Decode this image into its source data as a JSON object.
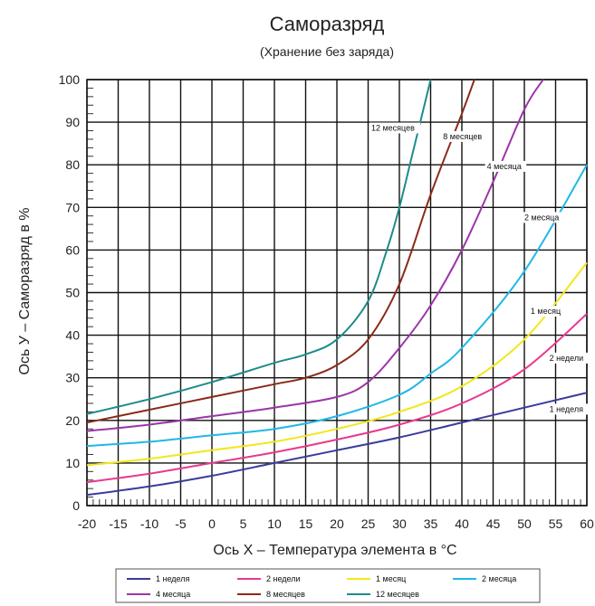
{
  "chart_data": {
    "type": "line",
    "title": "Саморазряд",
    "subtitle": "(Хранение без заряда)",
    "xlabel": "Ось X – Температура элемента в °C",
    "ylabel": "Ось У – Саморазряд в %",
    "xlim": [
      -20,
      60
    ],
    "ylim": [
      0,
      100
    ],
    "xticks": [
      -20,
      -15,
      -10,
      -5,
      0,
      5,
      10,
      15,
      20,
      25,
      30,
      35,
      40,
      45,
      50,
      55,
      60
    ],
    "yticks": [
      0,
      10,
      20,
      30,
      40,
      50,
      60,
      70,
      80,
      90,
      100
    ],
    "grid": true,
    "legend_position": "bottom",
    "series": [
      {
        "name": "1 неделя",
        "color": "#3b3b9c",
        "label": "1 неделя",
        "label_at": [
          54,
          22
        ],
        "x": [
          -20,
          -10,
          0,
          10,
          20,
          30,
          40,
          50,
          60
        ],
        "y": [
          2.5,
          4.5,
          7,
          10,
          13,
          16,
          19.5,
          23,
          26.5
        ]
      },
      {
        "name": "2 недели",
        "color": "#e8398f",
        "label": "2 недели",
        "label_at": [
          54,
          34
        ],
        "x": [
          -20,
          -10,
          0,
          10,
          20,
          30,
          40,
          50,
          60
        ],
        "y": [
          5.5,
          7.5,
          10,
          12.5,
          15.5,
          19,
          24,
          32,
          45
        ]
      },
      {
        "name": "1 месяц",
        "color": "#f2e71b",
        "label": "1 месяц",
        "label_at": [
          51,
          45
        ],
        "x": [
          -20,
          -10,
          0,
          10,
          20,
          30,
          40,
          50,
          60
        ],
        "y": [
          9.5,
          11,
          13,
          15,
          18,
          22,
          28,
          39,
          57
        ]
      },
      {
        "name": "2 месяца",
        "color": "#1fb8e8",
        "label": "2 месяца",
        "label_at": [
          50,
          67
        ],
        "x": [
          -20,
          -10,
          0,
          10,
          20,
          30,
          35,
          40,
          50,
          60
        ],
        "y": [
          14,
          15,
          16.5,
          18,
          21,
          26,
          31,
          37,
          55,
          80
        ]
      },
      {
        "name": "4 месяца",
        "color": "#9b35a8",
        "label": "4 месяца",
        "label_at": [
          44,
          79
        ],
        "x": [
          -20,
          -10,
          0,
          10,
          20,
          25,
          30,
          35,
          40,
          45,
          50,
          53
        ],
        "y": [
          17.5,
          19,
          21,
          23,
          25.5,
          29,
          37,
          47,
          60,
          76,
          93,
          100
        ]
      },
      {
        "name": "8 месяцев",
        "color": "#8b2a1a",
        "label": "8 месяцев",
        "label_at": [
          37,
          86
        ],
        "x": [
          -20,
          -10,
          0,
          10,
          15,
          20,
          25,
          30,
          35,
          40,
          42
        ],
        "y": [
          19.5,
          22.5,
          25.5,
          28.5,
          30,
          33,
          39,
          52,
          73,
          92,
          100
        ]
      },
      {
        "name": "12 месяцев",
        "color": "#1d8c8a",
        "label": "12 месяцев",
        "label_at": [
          25.5,
          88
        ],
        "x": [
          -20,
          -10,
          0,
          10,
          15,
          20,
          25,
          28,
          30,
          32,
          35
        ],
        "y": [
          21.5,
          25,
          29,
          33.5,
          35.5,
          39,
          48,
          60,
          70,
          82,
          100
        ]
      }
    ]
  }
}
